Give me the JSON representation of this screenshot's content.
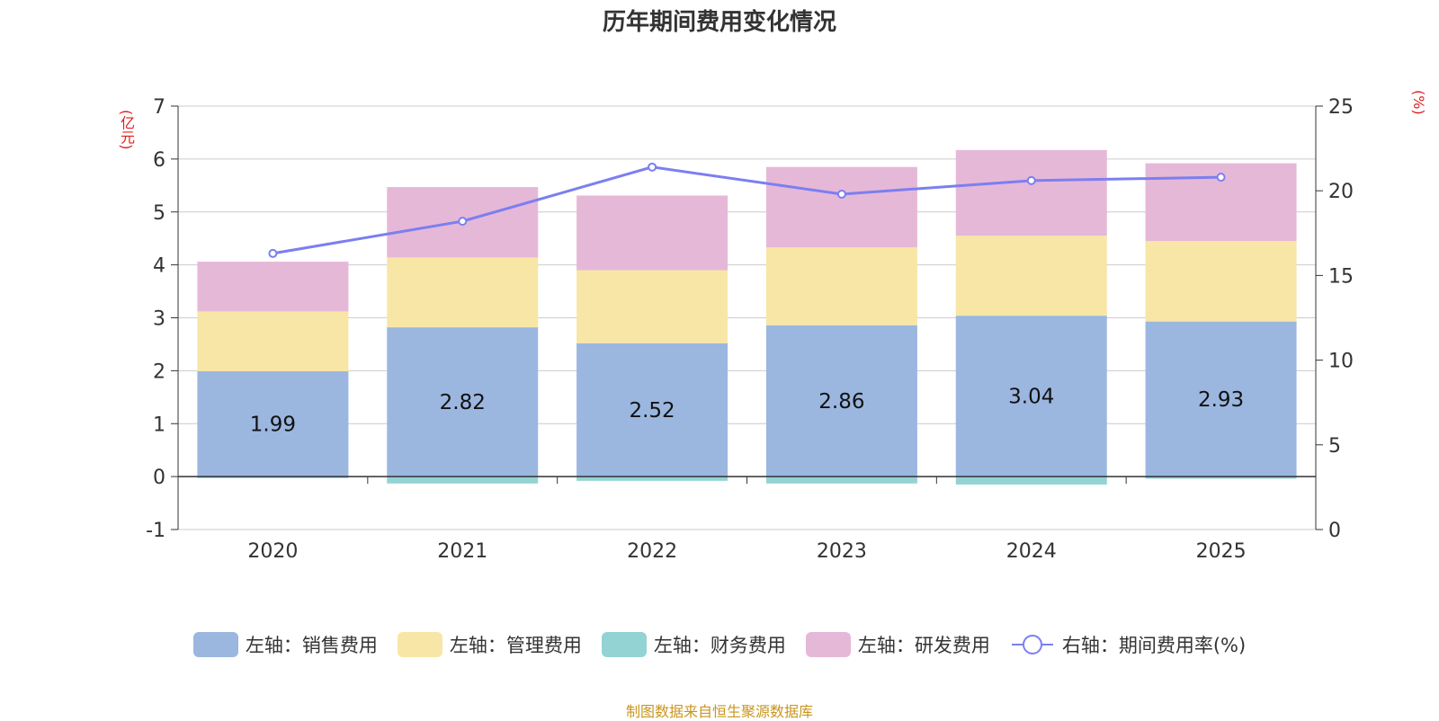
{
  "title": "历年期间费用变化情况",
  "source": "制图数据来自恒生聚源数据库",
  "colors": {
    "sales": "#9bb7e0",
    "admin": "#f7e6a6",
    "finance": "#93d3d3",
    "rnd": "#e6b8d8",
    "rate_line": "#7b7ff0",
    "axis_unit": "#e01f1f",
    "source": "#c8961e"
  },
  "chart_data": {
    "type": "bar",
    "stacked": true,
    "categories": [
      "2020",
      "2021",
      "2022",
      "2023",
      "2024",
      "2025"
    ],
    "left_axis": {
      "unit": "(亿元)",
      "range": [
        -1,
        7
      ],
      "ticks": [
        -1,
        0,
        1,
        2,
        3,
        4,
        5,
        6,
        7
      ]
    },
    "right_axis": {
      "unit": "(%)",
      "range": [
        0,
        25
      ],
      "ticks": [
        0,
        5,
        10,
        15,
        20,
        25
      ]
    },
    "series": [
      {
        "name": "左轴：销售费用",
        "key": "sales",
        "axis": "left",
        "type": "bar",
        "values": [
          1.99,
          2.82,
          2.52,
          2.86,
          3.04,
          2.93
        ],
        "show_labels": true
      },
      {
        "name": "左轴：管理费用",
        "key": "admin",
        "axis": "left",
        "type": "bar",
        "values": [
          1.13,
          1.32,
          1.38,
          1.47,
          1.51,
          1.52
        ]
      },
      {
        "name": "左轴：财务费用",
        "key": "finance",
        "axis": "left",
        "type": "bar",
        "values": [
          -0.03,
          -0.13,
          -0.08,
          -0.13,
          -0.15,
          -0.04
        ]
      },
      {
        "name": "左轴：研发费用",
        "key": "rnd",
        "axis": "left",
        "type": "bar",
        "values": [
          0.94,
          1.33,
          1.41,
          1.52,
          1.62,
          1.47
        ]
      },
      {
        "name": "右轴：期间费用率(%)",
        "key": "rate_line",
        "axis": "right",
        "type": "line",
        "values": [
          16.3,
          18.2,
          21.4,
          19.8,
          20.6,
          20.8
        ]
      }
    ]
  }
}
